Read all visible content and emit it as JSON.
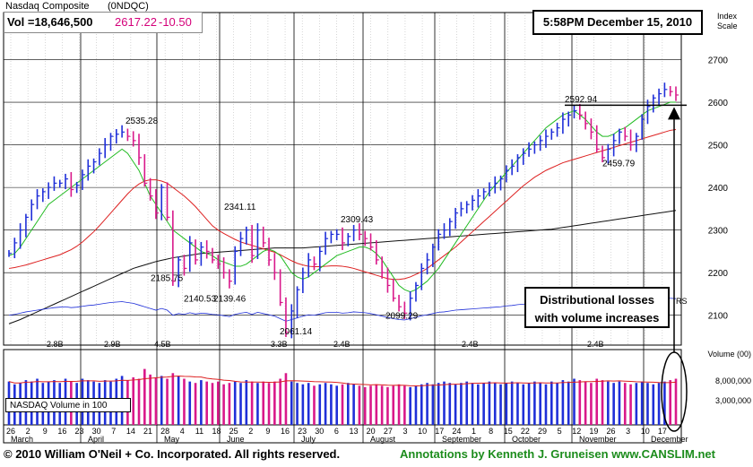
{
  "header": {
    "title": "Nasdaq Composite",
    "symbol": "(0NDQC)",
    "volume": "Vol =18,646,500",
    "price": "2617.22",
    "change": "-10.50",
    "timestamp": "5:58PM December 15, 2010",
    "scale_label": [
      "Index",
      "Scale"
    ]
  },
  "annotation": {
    "lines": [
      "Distributional losses",
      "with volume increases"
    ]
  },
  "volume_panel": {
    "legend": "NASDAQ Volume in 100",
    "axis_title": "Volume (00)"
  },
  "footer": {
    "copyright": "© 2010 William O'Neil + Co. Incorporated. All rights reserved.",
    "credit": "Annotations by Kenneth J. Gruneisen  www.CANSLIM.net"
  },
  "colors": {
    "up_bar": "#1f2fd8",
    "down_bar": "#d9188a",
    "ma50": "#22bb22",
    "ma200": "#dd2020",
    "ma_long": "#111111",
    "rs_line": "#1f2fd8",
    "grid": "#000000",
    "credit_green": "#1c8c1c"
  },
  "chart_data": {
    "type": "ohlc",
    "y_axis": {
      "label": "Index Scale",
      "ticks": [
        2100,
        2200,
        2300,
        2400,
        2500,
        2600,
        2700
      ],
      "range": [
        2030,
        2760
      ]
    },
    "volume_axis": {
      "ticks": [
        "Volume (00)",
        "8,000,000",
        "3,000,000"
      ]
    },
    "x_ticks": [
      "26",
      "2",
      "9",
      "16",
      "23",
      "30",
      "7",
      "14",
      "21",
      "28",
      "4",
      "11",
      "18",
      "25",
      "2",
      "9",
      "16",
      "23",
      "30",
      "6",
      "13",
      "20",
      "27",
      "3",
      "10",
      "17",
      "24",
      "1",
      "8",
      "15",
      "22",
      "29",
      "5",
      "12",
      "19",
      "26",
      "3",
      "10",
      "17"
    ],
    "months": [
      "March",
      "April",
      "May",
      "June",
      "July",
      "August",
      "September",
      "October",
      "November",
      "December"
    ],
    "price_annotations": [
      {
        "label": "2535.28",
        "value": 2535.28
      },
      {
        "label": "2185.75",
        "value": 2185.75
      },
      {
        "label": "2140.53",
        "value": 2140.53
      },
      {
        "label": "2139.46",
        "value": 2139.46
      },
      {
        "label": "2341.11",
        "value": 2341.11
      },
      {
        "label": "2061.14",
        "value": 2061.14
      },
      {
        "label": "2309.43",
        "value": 2309.43
      },
      {
        "label": "2099.29",
        "value": 2099.29
      },
      {
        "label": "2592.94",
        "value": 2592.94
      },
      {
        "label": "2459.79",
        "value": 2459.79
      }
    ],
    "volume_annotations": [
      "2.8B",
      "2.9B",
      "4.5B",
      "3.3B",
      "2.4B",
      "2.4B",
      "2.4B"
    ],
    "rs_label": "RS",
    "series_close": [
      2245,
      2270,
      2300,
      2330,
      2360,
      2380,
      2390,
      2400,
      2410,
      2410,
      2420,
      2395,
      2405,
      2430,
      2450,
      2460,
      2480,
      2500,
      2520,
      2525,
      2530,
      2520,
      2510,
      2470,
      2410,
      2380,
      2340,
      2400,
      2330,
      2180,
      2230,
      2210,
      2270,
      2230,
      2260,
      2250,
      2230,
      2220,
      2200,
      2180,
      2250,
      2280,
      2300,
      2240,
      2300,
      2270,
      2230,
      2200,
      2130,
      2060,
      2110,
      2160,
      2200,
      2230,
      2220,
      2250,
      2280,
      2290,
      2290,
      2270,
      2285,
      2300,
      2290,
      2280,
      2260,
      2230,
      2200,
      2170,
      2140,
      2120,
      2105,
      2140,
      2170,
      2210,
      2230,
      2260,
      2290,
      2300,
      2320,
      2340,
      2350,
      2360,
      2370,
      2380,
      2390,
      2400,
      2410,
      2420,
      2440,
      2450,
      2470,
      2480,
      2490,
      2500,
      2510,
      2520,
      2530,
      2540,
      2560,
      2570,
      2580,
      2570,
      2550,
      2530,
      2490,
      2470,
      2490,
      2510,
      2530,
      2520,
      2500,
      2520,
      2560,
      2590,
      2610,
      2620,
      2630,
      2625,
      2617
    ],
    "ma50": [
      2240,
      2245,
      2260,
      2280,
      2300,
      2320,
      2340,
      2360,
      2370,
      2380,
      2390,
      2400,
      2410,
      2420,
      2430,
      2440,
      2450,
      2460,
      2470,
      2480,
      2490,
      2480,
      2460,
      2440,
      2410,
      2380,
      2360,
      2340,
      2320,
      2300,
      2290,
      2280,
      2270,
      2260,
      2250,
      2245,
      2240,
      2230,
      2225,
      2220,
      2215,
      2215,
      2220,
      2230,
      2240,
      2250,
      2255,
      2250,
      2240,
      2220,
      2200,
      2190,
      2185,
      2190,
      2200,
      2210,
      2220,
      2230,
      2240,
      2245,
      2250,
      2255,
      2260,
      2260,
      2255,
      2245,
      2230,
      2210,
      2190,
      2170,
      2160,
      2155,
      2160,
      2170,
      2180,
      2195,
      2210,
      2230,
      2250,
      2270,
      2290,
      2310,
      2330,
      2350,
      2370,
      2390,
      2405,
      2420,
      2435,
      2450,
      2465,
      2480,
      2495,
      2510,
      2525,
      2540,
      2550,
      2560,
      2570,
      2575,
      2580,
      2570,
      2560,
      2545,
      2530,
      2520,
      2520,
      2525,
      2535,
      2540,
      2550,
      2560,
      2570,
      2580,
      2585,
      2590,
      2595,
      2600,
      2600
    ],
    "ma200": [
      2210,
      2212,
      2215,
      2218,
      2222,
      2226,
      2230,
      2234,
      2238,
      2242,
      2248,
      2254,
      2262,
      2272,
      2284,
      2296,
      2310,
      2325,
      2340,
      2355,
      2370,
      2385,
      2398,
      2408,
      2415,
      2418,
      2418,
      2415,
      2410,
      2400,
      2390,
      2380,
      2368,
      2355,
      2340,
      2325,
      2310,
      2300,
      2292,
      2285,
      2278,
      2272,
      2268,
      2264,
      2260,
      2256,
      2252,
      2248,
      2242,
      2235,
      2228,
      2222,
      2218,
      2215,
      2214,
      2214,
      2215,
      2216,
      2216,
      2215,
      2213,
      2210,
      2206,
      2202,
      2198,
      2194,
      2190,
      2186,
      2184,
      2184,
      2186,
      2190,
      2196,
      2202,
      2210,
      2220,
      2230,
      2240,
      2250,
      2260,
      2272,
      2284,
      2296,
      2308,
      2320,
      2332,
      2344,
      2356,
      2368,
      2380,
      2392,
      2404,
      2414,
      2424,
      2432,
      2440,
      2446,
      2452,
      2458,
      2462,
      2466,
      2470,
      2474,
      2478,
      2482,
      2486,
      2490,
      2494,
      2498,
      2502,
      2506,
      2510,
      2514,
      2518,
      2522,
      2526,
      2530,
      2534,
      2536
    ],
    "ma_long": [
      2080,
      2085,
      2090,
      2096,
      2102,
      2108,
      2114,
      2120,
      2126,
      2132,
      2138,
      2144,
      2150,
      2156,
      2162,
      2168,
      2174,
      2180,
      2186,
      2192,
      2198,
      2204,
      2210,
      2214,
      2218,
      2222,
      2226,
      2229,
      2232,
      2235,
      2237,
      2239,
      2241,
      2243,
      2245,
      2246,
      2247,
      2248,
      2249,
      2250,
      2251,
      2252,
      2253,
      2254,
      2255,
      2256,
      2257,
      2258,
      2258,
      2258,
      2258,
      2258,
      2258,
      2259,
      2260,
      2261,
      2262,
      2263,
      2264,
      2265,
      2266,
      2267,
      2268,
      2269,
      2270,
      2271,
      2272,
      2273,
      2274,
      2275,
      2276,
      2277,
      2278,
      2279,
      2280,
      2281,
      2282,
      2283,
      2284,
      2285,
      2286,
      2287,
      2288,
      2289,
      2290,
      2291,
      2292,
      2293,
      2294,
      2295,
      2296,
      2297,
      2298,
      2299,
      2300,
      2301,
      2302,
      2304,
      2306,
      2308,
      2310,
      2312,
      2314,
      2316,
      2318,
      2320,
      2322,
      2324,
      2326,
      2328,
      2330,
      2332,
      2334,
      2336,
      2338,
      2340,
      2342,
      2344,
      2346
    ],
    "rs_line": [
      2100,
      2102,
      2105,
      2108,
      2110,
      2112,
      2114,
      2116,
      2118,
      2119,
      2120,
      2118,
      2119,
      2121,
      2123,
      2124,
      2126,
      2128,
      2130,
      2131,
      2132,
      2130,
      2128,
      2124,
      2120,
      2116,
      2112,
      2116,
      2112,
      2100,
      2104,
      2102,
      2106,
      2103,
      2105,
      2104,
      2102,
      2101,
      2099,
      2097,
      2102,
      2105,
      2107,
      2102,
      2107,
      2104,
      2101,
      2098,
      2092,
      2086,
      2090,
      2094,
      2098,
      2101,
      2100,
      2103,
      2106,
      2107,
      2107,
      2105,
      2106,
      2108,
      2107,
      2106,
      2104,
      2101,
      2098,
      2095,
      2092,
      2090,
      2089,
      2092,
      2095,
      2099,
      2101,
      2104,
      2107,
      2108,
      2110,
      2112,
      2113,
      2114,
      2115,
      2116,
      2117,
      2118,
      2119,
      2120,
      2122,
      2123,
      2125,
      2126,
      2127,
      2128,
      2129,
      2130,
      2131,
      2132,
      2134,
      2135,
      2136,
      2135,
      2133,
      2131,
      2127,
      2125,
      2127,
      2129,
      2131,
      2130,
      2128,
      2130,
      2134,
      2137,
      2139,
      2140,
      2141,
      2140,
      2139
    ],
    "volume": [
      0.62,
      0.58,
      0.6,
      0.64,
      0.62,
      0.66,
      0.6,
      0.62,
      0.64,
      0.6,
      0.66,
      0.62,
      0.6,
      0.66,
      0.64,
      0.62,
      0.6,
      0.64,
      0.62,
      0.66,
      0.7,
      0.64,
      0.68,
      0.66,
      0.8,
      0.72,
      0.68,
      0.7,
      0.66,
      0.74,
      0.7,
      0.66,
      0.62,
      0.6,
      0.64,
      0.62,
      0.6,
      0.62,
      0.58,
      0.6,
      0.62,
      0.6,
      0.64,
      0.62,
      0.6,
      0.62,
      0.6,
      0.62,
      0.66,
      0.74,
      0.62,
      0.6,
      0.58,
      0.6,
      0.56,
      0.58,
      0.6,
      0.58,
      0.56,
      0.58,
      0.6,
      0.58,
      0.56,
      0.54,
      0.56,
      0.58,
      0.56,
      0.54,
      0.56,
      0.58,
      0.56,
      0.54,
      0.56,
      0.58,
      0.6,
      0.58,
      0.6,
      0.62,
      0.6,
      0.58,
      0.6,
      0.62,
      0.6,
      0.58,
      0.6,
      0.62,
      0.6,
      0.58,
      0.6,
      0.62,
      0.6,
      0.58,
      0.6,
      0.62,
      0.6,
      0.58,
      0.62,
      0.6,
      0.64,
      0.62,
      0.66,
      0.64,
      0.62,
      0.6,
      0.66,
      0.64,
      0.62,
      0.6,
      0.62,
      0.6,
      0.58,
      0.6,
      0.62,
      0.6,
      0.58,
      0.6,
      0.62,
      0.64,
      0.66
    ]
  }
}
